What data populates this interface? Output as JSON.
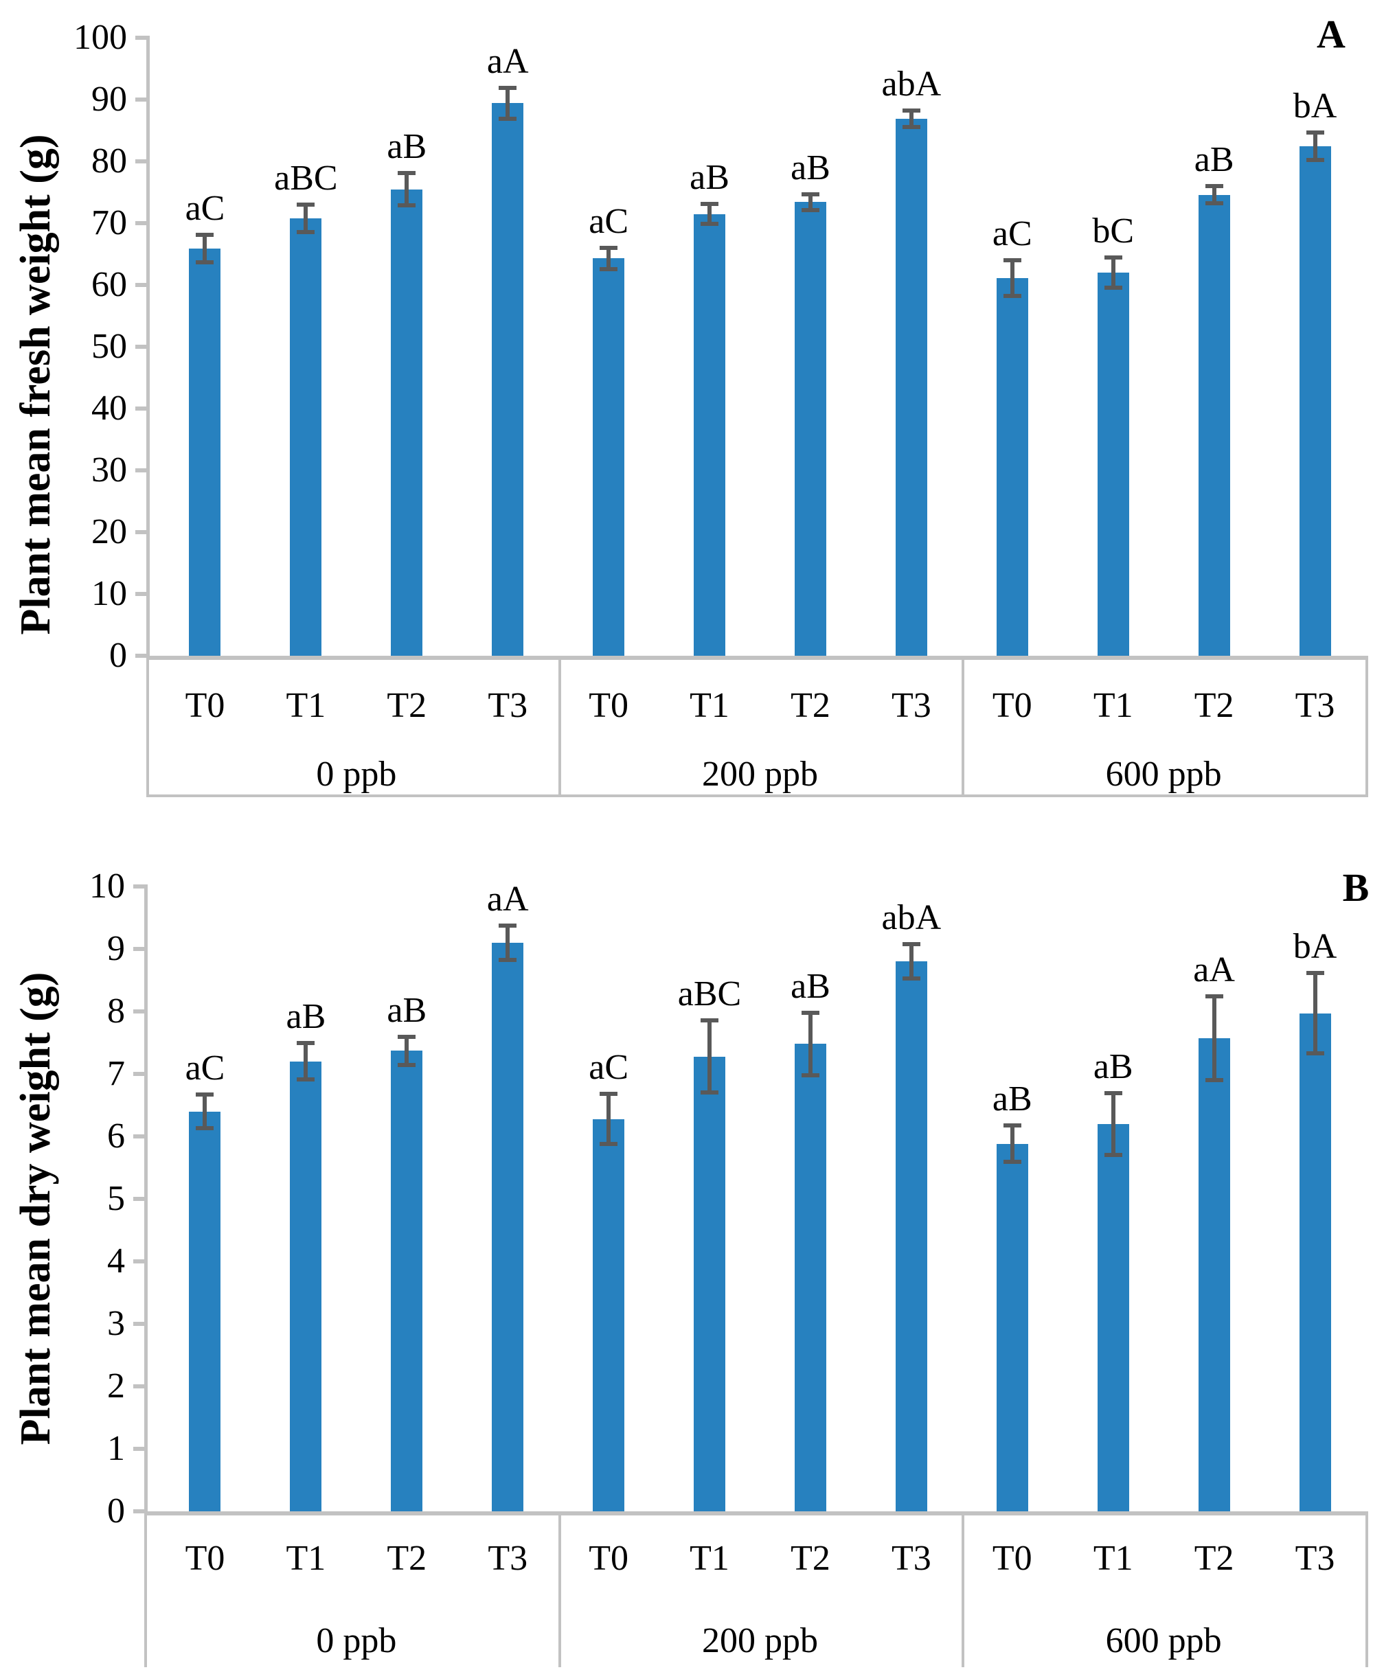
{
  "colors": {
    "bar": "#2781BF",
    "error_bar": "#595959",
    "axis_line": "#C2C2C2",
    "text": "#000000",
    "background": "#FFFFFF"
  },
  "chart_data": [
    {
      "type": "bar",
      "panel_letter": "A",
      "ylabel": "Plant mean fresh weight (g)",
      "xlabel": "",
      "ylim": [
        0,
        100
      ],
      "yticks": [
        0,
        10,
        20,
        30,
        40,
        50,
        60,
        70,
        80,
        90,
        100
      ],
      "grid": "off",
      "legend": "none",
      "group_labels": [
        "0 ppb",
        "200 ppb",
        "600 ppb"
      ],
      "categories": [
        "T0",
        "T1",
        "T2",
        "T3",
        "T0",
        "T1",
        "T2",
        "T3",
        "T0",
        "T1",
        "T2",
        "T3"
      ],
      "values": [
        65.9,
        70.8,
        75.5,
        89.4,
        64.3,
        71.5,
        73.4,
        86.9,
        61.1,
        62.0,
        74.6,
        82.5
      ],
      "errors": [
        2.0,
        2.0,
        2.4,
        2.3,
        1.5,
        1.4,
        1.1,
        1.1,
        2.7,
        2.2,
        1.2,
        2.0
      ],
      "sig_labels": [
        "aC",
        "aBC",
        "aB",
        "aA",
        "aC",
        "aB",
        "aB",
        "abA",
        "aC",
        "bC",
        "aB",
        "bA"
      ]
    },
    {
      "type": "bar",
      "panel_letter": "B",
      "ylabel": "Plant mean dry weight (g)",
      "xlabel": "",
      "ylim": [
        0,
        10
      ],
      "yticks": [
        0,
        1,
        2,
        3,
        4,
        5,
        6,
        7,
        8,
        9,
        10
      ],
      "grid": "off",
      "legend": "none",
      "group_labels": [
        "0 ppb",
        "200 ppb",
        "600 ppb"
      ],
      "categories": [
        "T0",
        "T1",
        "T2",
        "T3",
        "T0",
        "T1",
        "T2",
        "T3",
        "T0",
        "T1",
        "T2",
        "T3"
      ],
      "values": [
        6.4,
        7.2,
        7.37,
        9.1,
        6.28,
        7.28,
        7.48,
        8.8,
        5.88,
        6.2,
        7.57,
        7.97
      ],
      "errors": [
        0.25,
        0.27,
        0.2,
        0.25,
        0.38,
        0.55,
        0.48,
        0.25,
        0.27,
        0.47,
        0.65,
        0.62
      ],
      "sig_labels": [
        "aC",
        "aB",
        "aB",
        "aA",
        "aC",
        "aBC",
        "aB",
        "abA",
        "aB",
        "aB",
        "aA",
        "bA"
      ]
    }
  ]
}
